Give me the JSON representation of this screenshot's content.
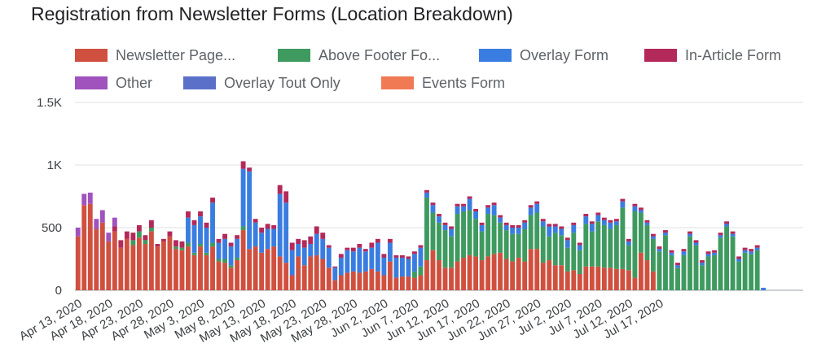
{
  "chart_data": {
    "type": "bar",
    "stacked": true,
    "title": "Registration from Newsletter Forms (Location Breakdown)",
    "legend_position": "top",
    "grid": true,
    "ylim": [
      0,
      1500
    ],
    "y_ticks": [
      "0",
      "500",
      "1K",
      "1.5K"
    ],
    "y_tick_values": [
      0,
      500,
      1000,
      1500
    ],
    "x_tick_labels": [
      "Apr 13, 2020",
      "Apr 18, 2020",
      "Apr 23, 2020",
      "Apr 28, 2020",
      "May 3, 2020",
      "May 8, 2020",
      "May 13, 2020",
      "May 18, 2020",
      "May 23, 2020",
      "May 28, 2020",
      "Jun 2, 2020",
      "Jun 7, 2020",
      "Jun 12, 2020",
      "Jun 17, 2020",
      "Jun 22, 2020",
      "Jun 27, 2020",
      "Jul 2, 2020",
      "Jul 7, 2020",
      "Jul 12, 2020",
      "Jul 17, 2020"
    ],
    "series": [
      {
        "name": "Newsletter Page...",
        "color": "#d0503f",
        "values": [
          430,
          680,
          690,
          490,
          540,
          390,
          470,
          340,
          410,
          360,
          420,
          370,
          470,
          350,
          390,
          430,
          330,
          320,
          350,
          280,
          350,
          280,
          350,
          230,
          220,
          180,
          240,
          480,
          330,
          350,
          300,
          330,
          350,
          270,
          220,
          120,
          270,
          200,
          270,
          280,
          250,
          180,
          80,
          120,
          140,
          150,
          140,
          150,
          170,
          150,
          120,
          230,
          100,
          110,
          110,
          100,
          120,
          240,
          320,
          240,
          180,
          180,
          230,
          260,
          280,
          270,
          240,
          270,
          290,
          300,
          250,
          230,
          260,
          230,
          330,
          330,
          220,
          240,
          200,
          200,
          150,
          160,
          130,
          190,
          190,
          190,
          180,
          180,
          170,
          170,
          160,
          100,
          300,
          240,
          150,
          0,
          0,
          0,
          0,
          0,
          0,
          0,
          0,
          0,
          0,
          0,
          0,
          0,
          0,
          0,
          0,
          0,
          0,
          0,
          0,
          0,
          0,
          0,
          0
        ]
      },
      {
        "name": "Above Footer Fo...",
        "color": "#3e9a5f",
        "values": [
          0,
          0,
          0,
          0,
          0,
          0,
          0,
          0,
          0,
          0,
          0,
          0,
          0,
          0,
          0,
          0,
          0,
          0,
          0,
          0,
          0,
          0,
          0,
          0,
          0,
          0,
          0,
          0,
          0,
          0,
          0,
          0,
          0,
          0,
          0,
          0,
          0,
          0,
          0,
          0,
          0,
          0,
          0,
          0,
          0,
          0,
          0,
          0,
          0,
          0,
          0,
          0,
          0,
          0,
          0,
          0,
          0,
          0,
          0,
          0,
          0,
          0,
          0,
          0,
          0,
          0,
          0,
          0,
          0,
          0,
          0,
          0,
          0,
          0,
          0,
          0,
          0,
          0,
          0,
          0,
          0,
          0,
          0,
          0,
          0,
          0,
          0,
          0,
          0,
          0,
          0,
          0,
          0,
          0,
          0,
          0,
          0,
          0,
          0,
          0,
          0,
          0,
          0,
          0,
          0,
          0,
          0,
          0,
          0,
          0,
          0,
          0,
          0,
          0,
          0,
          0,
          0,
          0,
          0
        ]
      },
      {
        "name": "Overlay Form",
        "color": "#3a7de0",
        "values": [
          0,
          0,
          0,
          0,
          0,
          0,
          0,
          0,
          0,
          0,
          0,
          0,
          0,
          0,
          0,
          0,
          0,
          0,
          0,
          0,
          0,
          0,
          0,
          0,
          0,
          0,
          0,
          0,
          0,
          0,
          0,
          0,
          0,
          0,
          0,
          0,
          0,
          0,
          0,
          0,
          0,
          0,
          0,
          0,
          0,
          0,
          0,
          0,
          0,
          0,
          0,
          0,
          0,
          0,
          0,
          0,
          0,
          0,
          0,
          0,
          0,
          0,
          0,
          0,
          0,
          0,
          0,
          0,
          0,
          0,
          0,
          0,
          0,
          0,
          0,
          0,
          0,
          0,
          0,
          0,
          0,
          0,
          0,
          0,
          0,
          0,
          0,
          0,
          0,
          0,
          0,
          0,
          0,
          0,
          0,
          0,
          0,
          0,
          0,
          0,
          0,
          0,
          0,
          0,
          0,
          0,
          0,
          0,
          0,
          0,
          0,
          0,
          0,
          0,
          0,
          0,
          0,
          0,
          0
        ]
      },
      {
        "name": "In-Article Form",
        "color": "#b3295a",
        "values": [
          0,
          0,
          0,
          0,
          0,
          0,
          0,
          0,
          0,
          0,
          0,
          0,
          0,
          0,
          0,
          0,
          0,
          0,
          0,
          0,
          0,
          0,
          0,
          0,
          0,
          0,
          0,
          0,
          0,
          0,
          0,
          0,
          0,
          0,
          0,
          0,
          0,
          0,
          0,
          0,
          0,
          0,
          0,
          0,
          0,
          0,
          0,
          0,
          0,
          0,
          0,
          0,
          0,
          0,
          0,
          0,
          0,
          0,
          0,
          0,
          0,
          0,
          0,
          0,
          0,
          0,
          0,
          0,
          0,
          0,
          0,
          0,
          0,
          0,
          0,
          0,
          0,
          0,
          0,
          0,
          0,
          0,
          0,
          0,
          0,
          0,
          0,
          0,
          0,
          0,
          0,
          0,
          0,
          0,
          0,
          0,
          0,
          0,
          0,
          0,
          0,
          0,
          0,
          0,
          0,
          0,
          0,
          0,
          0,
          0,
          0,
          0,
          0,
          0,
          0,
          0,
          0,
          0,
          0
        ]
      },
      {
        "name": "Other",
        "color": "#a052bd",
        "values": [
          70,
          90,
          90,
          80,
          100,
          70,
          70,
          0,
          0,
          0,
          0,
          0,
          0,
          0,
          0,
          0,
          0,
          0,
          0,
          0,
          0,
          0,
          0,
          0,
          0,
          0,
          0,
          0,
          0,
          0,
          0,
          0,
          0,
          0,
          0,
          0,
          0,
          0,
          0,
          0,
          0,
          0,
          0,
          0,
          0,
          0,
          0,
          0,
          0,
          0,
          0,
          0,
          0,
          0,
          0,
          0,
          0,
          0,
          0,
          0,
          0,
          0,
          0,
          0,
          0,
          0,
          0,
          0,
          0,
          0,
          0,
          0,
          0,
          0,
          0,
          0,
          0,
          0,
          0,
          0,
          0,
          0,
          0,
          0,
          0,
          0,
          0,
          0,
          0,
          0,
          0,
          0,
          0,
          0,
          0,
          0,
          0,
          0,
          0,
          0,
          0,
          0,
          0,
          0,
          0,
          0,
          0,
          0,
          0,
          0,
          0,
          0,
          0,
          0,
          0,
          0,
          0,
          0,
          0
        ]
      },
      {
        "name": "Overlay Tout Only",
        "color": "#5b70c9",
        "values": [
          0,
          0,
          0,
          0,
          0,
          0,
          0,
          0,
          0,
          0,
          0,
          0,
          0,
          0,
          0,
          0,
          0,
          0,
          0,
          0,
          0,
          0,
          0,
          0,
          0,
          0,
          0,
          0,
          0,
          0,
          0,
          0,
          0,
          0,
          0,
          0,
          0,
          0,
          0,
          0,
          0,
          0,
          0,
          0,
          0,
          0,
          0,
          0,
          0,
          0,
          0,
          0,
          0,
          0,
          0,
          0,
          0,
          0,
          0,
          0,
          0,
          0,
          0,
          0,
          0,
          0,
          0,
          0,
          0,
          0,
          0,
          0,
          0,
          0,
          0,
          0,
          0,
          0,
          0,
          0,
          0,
          0,
          0,
          0,
          0,
          0,
          0,
          0,
          0,
          0,
          0,
          0,
          0,
          0,
          0,
          0,
          0,
          0,
          0,
          0,
          0,
          0,
          0,
          0,
          0,
          0,
          0,
          0,
          0,
          0,
          0,
          0,
          0,
          0,
          0,
          0,
          0,
          0,
          0
        ]
      },
      {
        "name": "Events Form",
        "color": "#ef7a53",
        "values": [
          0,
          0,
          0,
          0,
          0,
          0,
          0,
          0,
          0,
          0,
          0,
          0,
          0,
          0,
          0,
          0,
          0,
          0,
          0,
          0,
          0,
          0,
          0,
          0,
          0,
          0,
          0,
          0,
          0,
          0,
          0,
          0,
          0,
          0,
          0,
          0,
          0,
          0,
          0,
          0,
          0,
          0,
          0,
          0,
          0,
          0,
          0,
          0,
          0,
          0,
          0,
          0,
          0,
          0,
          0,
          0,
          0,
          0,
          0,
          0,
          0,
          0,
          0,
          0,
          0,
          0,
          0,
          0,
          0,
          0,
          0,
          0,
          0,
          0,
          0,
          0,
          0,
          0,
          0,
          0,
          0,
          0,
          0,
          0,
          0,
          0,
          0,
          0,
          0,
          0,
          0,
          0,
          0,
          0,
          0,
          0,
          0,
          0,
          0,
          0,
          0,
          0,
          0,
          0,
          0,
          0,
          0,
          0,
          0,
          0,
          0,
          0,
          0,
          0,
          0,
          0,
          0,
          0,
          0
        ]
      }
    ],
    "detail_series_values": {
      "Above Footer Fo...": [
        0,
        0,
        0,
        0,
        0,
        0,
        0,
        0,
        0,
        40,
        50,
        30,
        30,
        0,
        0,
        0,
        20,
        20,
        30,
        20,
        20,
        20,
        30,
        20,
        30,
        20,
        20,
        30,
        0,
        0,
        0,
        0,
        0,
        0,
        0,
        0,
        0,
        0,
        0,
        0,
        0,
        0,
        0,
        0,
        0,
        0,
        0,
        0,
        0,
        0,
        0,
        0,
        0,
        0,
        0,
        50,
        70,
        500,
        300,
        300,
        300,
        250,
        380,
        370,
        360,
        300,
        230,
        340,
        310,
        240,
        230,
        220,
        190,
        260,
        270,
        290,
        290,
        190,
        260,
        240,
        190,
        300,
        190,
        340,
        280,
        360,
        340,
        310,
        350,
        490,
        200,
        530,
        320,
        280,
        260,
        310,
        440,
        280,
        180,
        280,
        430,
        360,
        200,
        270,
        280,
        420,
        510,
        430,
        230,
        300,
        290,
        320
      ]
    },
    "detail_overlay_values": [
      0,
      0,
      0,
      0,
      0,
      0,
      0,
      0,
      0,
      0,
      0,
      0,
      0,
      0,
      0,
      0,
      0,
      0,
      200,
      220,
      220,
      200,
      320,
      130,
      160,
      150,
      150,
      460,
      620,
      190,
      160,
      160,
      140,
      500,
      480,
      200,
      100,
      140,
      100,
      170,
      160,
      160,
      100,
      140,
      180,
      160,
      200,
      160,
      170,
      230,
      140,
      150,
      160,
      150,
      140,
      140,
      150,
      40,
      60,
      50,
      40,
      60,
      60,
      40,
      90,
      60,
      50,
      50,
      80,
      40,
      40,
      50,
      50,
      50,
      60,
      70,
      40,
      80,
      50,
      50,
      60,
      60,
      40,
      60,
      60,
      50,
      40,
      50,
      30,
      50,
      30,
      40,
      20,
      20,
      20,
      20,
      20,
      20,
      20,
      30,
      20,
      20,
      20,
      20,
      20,
      20,
      20,
      20,
      20,
      20,
      20,
      20,
      20
    ],
    "detail_inarticle_values": [
      0,
      0,
      0,
      0,
      0,
      0,
      40,
      60,
      60,
      60,
      50,
      40,
      60,
      20,
      20,
      40,
      50,
      50,
      50,
      40,
      40,
      40,
      40,
      30,
      40,
      30,
      30,
      60,
      30,
      30,
      40,
      40,
      30,
      70,
      90,
      60,
      40,
      60,
      60,
      60,
      50,
      20,
      10,
      30,
      20,
      30,
      30,
      20,
      40,
      30,
      30,
      30,
      20,
      20,
      20,
      20,
      20,
      20,
      20,
      20,
      20,
      20,
      20,
      20,
      20,
      20,
      20,
      20,
      20,
      20,
      20,
      20,
      20,
      20,
      20,
      20,
      20,
      20,
      20,
      20,
      20,
      20,
      20,
      20,
      20,
      20,
      20,
      20,
      20,
      20,
      20,
      20,
      20,
      20,
      20,
      20,
      20,
      20,
      20,
      20,
      20,
      20,
      20,
      20,
      20,
      20,
      20,
      20,
      20,
      20,
      20,
      20
    ]
  }
}
